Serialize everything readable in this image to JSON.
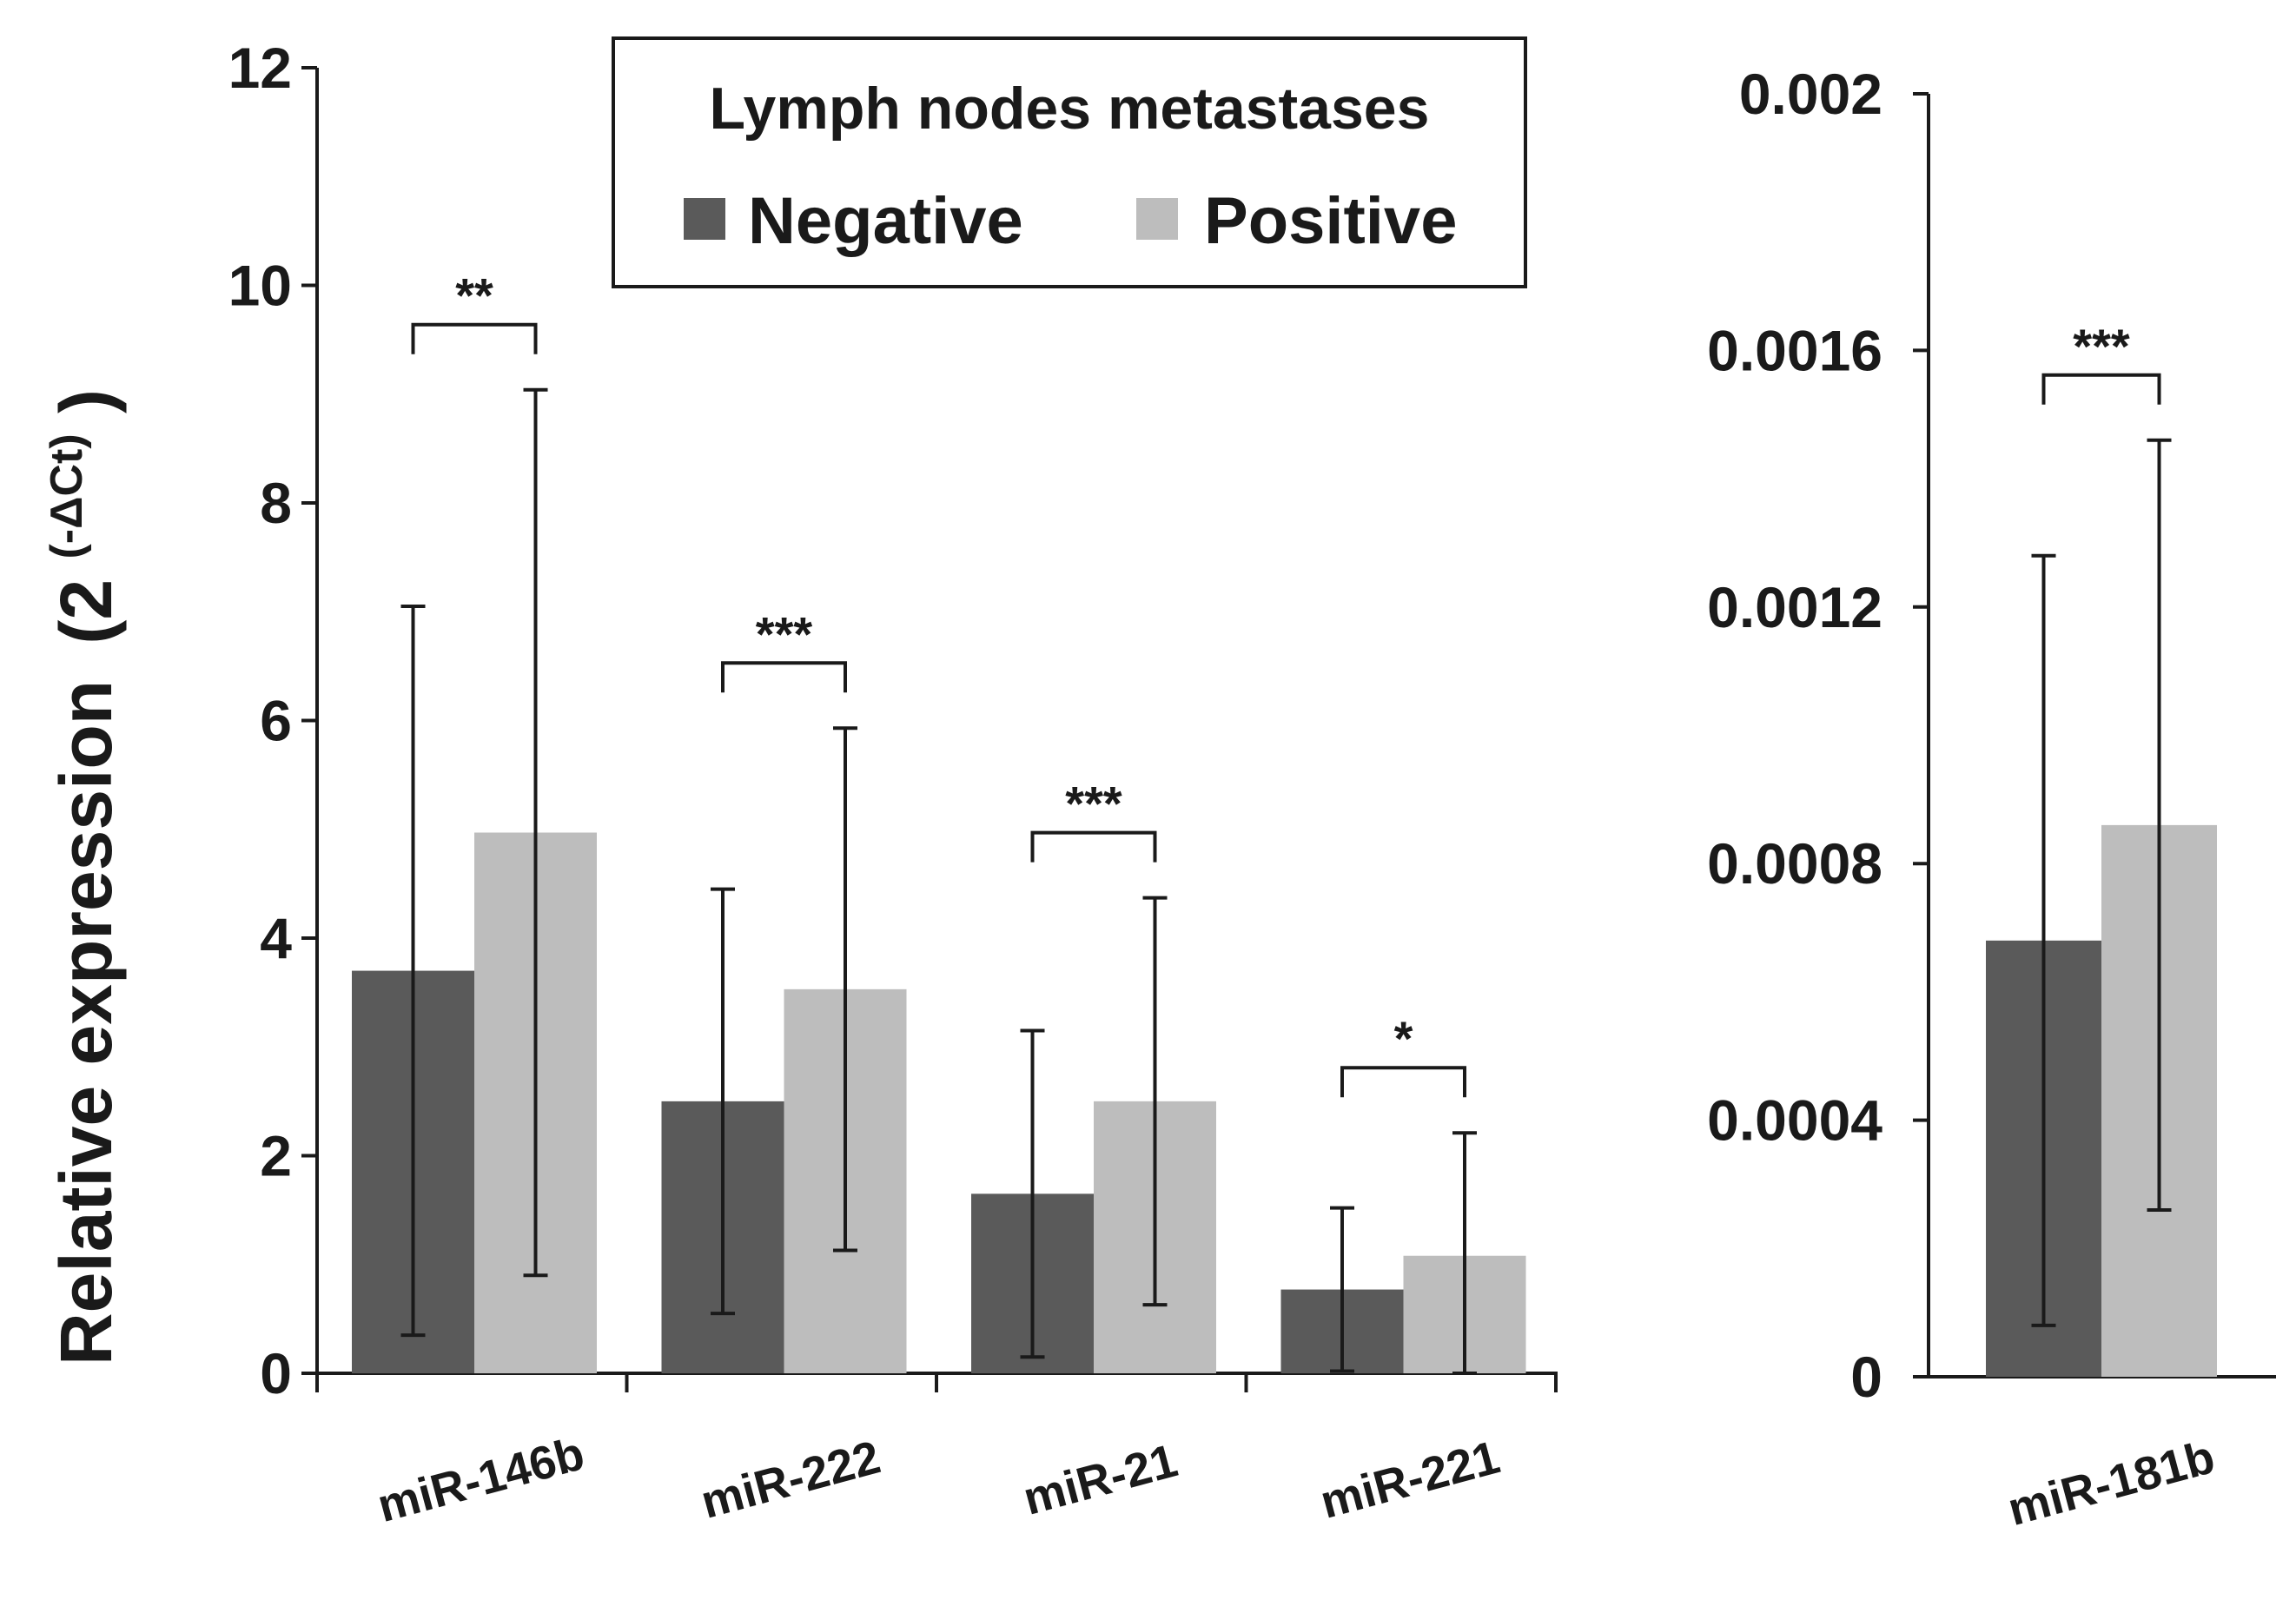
{
  "chart_data": [
    {
      "type": "bar",
      "panel": "left",
      "ylabel": "Relative expression",
      "ylabel_superscript": "(-ΔCt)",
      "ylabel_base": "(2",
      "ylabel_close": ")",
      "ylim": [
        0,
        12
      ],
      "yticks": [
        0,
        2,
        4,
        6,
        8,
        10,
        12
      ],
      "ytick_labels": [
        "0",
        "2",
        "4",
        "6",
        "8",
        "10",
        "12"
      ],
      "categories": [
        "miR-146b",
        "miR-222",
        "miR-21",
        "miR-221"
      ],
      "series": [
        {
          "name": "Negative",
          "color": "#5a5a5a",
          "values": [
            3.7,
            2.5,
            1.65,
            0.77
          ],
          "errors": [
            3.35,
            1.95,
            1.5,
            0.75
          ]
        },
        {
          "name": "Positive",
          "color": "#bdbdbd",
          "values": [
            4.97,
            3.53,
            2.5,
            1.08
          ],
          "errors": [
            4.07,
            2.4,
            1.87,
            1.13
          ]
        }
      ],
      "significance": [
        "**",
        "***",
        "***",
        "*"
      ],
      "legend": {
        "title": "Lymph nodes metastases",
        "entries": [
          "Negative",
          "Positive"
        ],
        "placement": "top-center"
      }
    },
    {
      "type": "bar",
      "panel": "right",
      "ylim": [
        0,
        0.002
      ],
      "yticks": [
        0,
        0.0004,
        0.0008,
        0.0012,
        0.0016,
        0.002
      ],
      "ytick_labels": [
        "0",
        "0.0004",
        "0.0008",
        "0.0012",
        "0.0016",
        "0.002"
      ],
      "categories": [
        "miR-181b"
      ],
      "series": [
        {
          "name": "Negative",
          "color": "#5a5a5a",
          "values": [
            0.00068
          ],
          "errors": [
            0.0006
          ]
        },
        {
          "name": "Positive",
          "color": "#bdbdbd",
          "values": [
            0.00086
          ],
          "errors": [
            0.0006
          ]
        }
      ],
      "significance": [
        "***"
      ]
    }
  ]
}
